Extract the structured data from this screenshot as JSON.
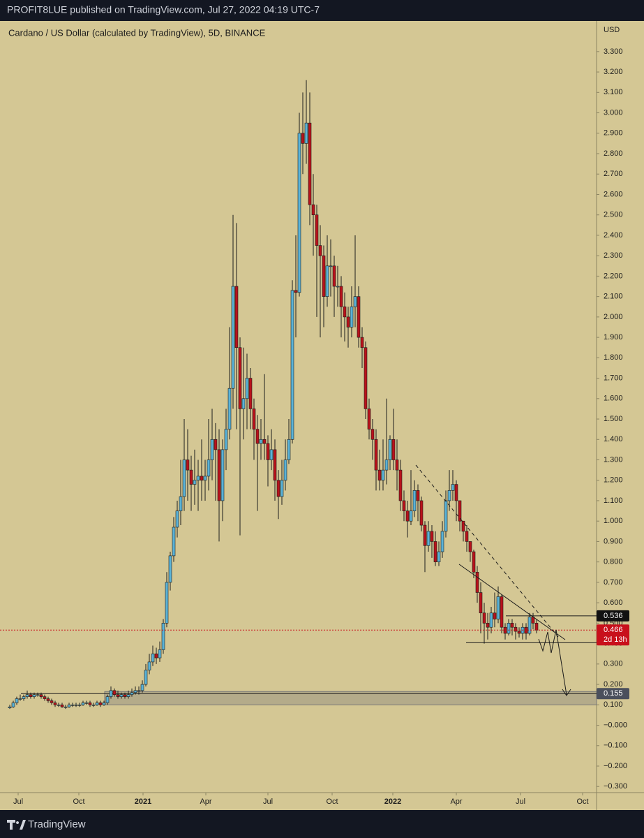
{
  "header": "PROFIT8LUE published on TradingView.com, Jul 27, 2022 04:19 UTC-7",
  "footer": "TradingView",
  "chart_data": {
    "type": "candlestick",
    "title": "Cardano / US Dollar (calculated by TradingView), 5D, BINANCE",
    "y_unit": "USD",
    "up_color": "#5ab2d6",
    "down_color": "#b8121b",
    "open": [
      0.085,
      0.09,
      0.11,
      0.13,
      0.13,
      0.14,
      0.15,
      0.14,
      0.15,
      0.15,
      0.14,
      0.13,
      0.12,
      0.11,
      0.1,
      0.1,
      0.09,
      0.09,
      0.1,
      0.1,
      0.1,
      0.1,
      0.11,
      0.11,
      0.1,
      0.1,
      0.11,
      0.1,
      0.11,
      0.14,
      0.17,
      0.15,
      0.14,
      0.15,
      0.14,
      0.15,
      0.16,
      0.17,
      0.17,
      0.2,
      0.27,
      0.31,
      0.35,
      0.33,
      0.37,
      0.5,
      0.7,
      0.83,
      0.97,
      1.05,
      1.12,
      1.3,
      1.25,
      1.18,
      1.2,
      1.22,
      1.2,
      1.22,
      1.3,
      1.4,
      1.35,
      1.1,
      1.35,
      1.45,
      1.65,
      2.15,
      1.85,
      1.55,
      1.6,
      1.7,
      1.55,
      1.45,
      1.38,
      1.4,
      1.38,
      1.3,
      1.35,
      1.2,
      1.12,
      1.2,
      1.3,
      1.4,
      2.13,
      2.12,
      2.9,
      2.85,
      2.95,
      2.55,
      2.5,
      2.35,
      2.3,
      2.1,
      2.25,
      2.25,
      2.15,
      2.15,
      2.05,
      2.0,
      1.95,
      2.05,
      2.1,
      1.9,
      1.85,
      1.55,
      1.45,
      1.4,
      1.25,
      1.2,
      1.25,
      1.3,
      1.4,
      1.3,
      1.25,
      1.1,
      1.05,
      1.0,
      1.05,
      1.15,
      1.1,
      0.98,
      0.88,
      0.95,
      0.9,
      0.8,
      0.85,
      0.95,
      1.1,
      1.15,
      1.18,
      1.1,
      1.0,
      0.95,
      0.9,
      0.85,
      0.75,
      0.65,
      0.55,
      0.5,
      0.48,
      0.55,
      0.52,
      0.63,
      0.48,
      0.45,
      0.5,
      0.48,
      0.46,
      0.45,
      0.48,
      0.45,
      0.53,
      0.5
    ],
    "high": [
      0.1,
      0.12,
      0.14,
      0.15,
      0.15,
      0.17,
      0.16,
      0.16,
      0.16,
      0.16,
      0.15,
      0.14,
      0.13,
      0.12,
      0.11,
      0.11,
      0.1,
      0.11,
      0.11,
      0.11,
      0.11,
      0.12,
      0.12,
      0.12,
      0.11,
      0.12,
      0.12,
      0.12,
      0.15,
      0.19,
      0.18,
      0.17,
      0.16,
      0.16,
      0.17,
      0.18,
      0.19,
      0.19,
      0.22,
      0.3,
      0.35,
      0.39,
      0.38,
      0.41,
      0.52,
      0.75,
      0.85,
      1.02,
      1.1,
      1.3,
      1.5,
      1.45,
      1.32,
      1.35,
      1.3,
      1.4,
      1.3,
      1.5,
      1.55,
      1.48,
      1.45,
      1.4,
      1.55,
      1.95,
      2.5,
      2.46,
      1.9,
      1.85,
      1.82,
      1.75,
      1.6,
      1.52,
      1.5,
      1.72,
      1.42,
      1.45,
      1.4,
      1.25,
      1.3,
      1.4,
      1.5,
      2.18,
      2.4,
      3.0,
      3.1,
      3.16,
      3.1,
      2.7,
      2.55,
      2.45,
      2.35,
      2.4,
      2.38,
      2.3,
      2.25,
      2.2,
      2.12,
      2.05,
      2.15,
      2.4,
      2.15,
      1.95,
      1.88,
      1.6,
      1.5,
      1.45,
      1.35,
      1.4,
      1.6,
      1.42,
      1.55,
      1.4,
      1.3,
      1.15,
      1.1,
      1.25,
      1.2,
      1.18,
      1.12,
      1.0,
      1.0,
      0.98,
      0.95,
      0.9,
      1.0,
      1.15,
      1.25,
      1.25,
      1.2,
      1.1,
      1.0,
      0.98,
      0.9,
      0.86,
      0.78,
      0.7,
      0.6,
      0.55,
      0.58,
      0.65,
      0.68,
      0.64,
      0.5,
      0.52,
      0.52,
      0.5,
      0.48,
      0.5,
      0.5,
      0.55,
      0.55,
      0.52
    ],
    "low": [
      0.08,
      0.085,
      0.1,
      0.12,
      0.12,
      0.13,
      0.13,
      0.13,
      0.14,
      0.13,
      0.12,
      0.11,
      0.1,
      0.09,
      0.09,
      0.085,
      0.08,
      0.085,
      0.09,
      0.09,
      0.09,
      0.095,
      0.1,
      0.09,
      0.09,
      0.095,
      0.09,
      0.095,
      0.1,
      0.13,
      0.14,
      0.13,
      0.13,
      0.13,
      0.13,
      0.14,
      0.15,
      0.15,
      0.16,
      0.19,
      0.25,
      0.29,
      0.3,
      0.31,
      0.35,
      0.48,
      0.66,
      0.8,
      0.92,
      0.98,
      1.05,
      1.1,
      1.05,
      1.08,
      1.05,
      1.1,
      1.1,
      1.15,
      1.2,
      1.1,
      0.9,
      1.0,
      1.25,
      1.4,
      1.55,
      1.45,
      0.93,
      1.4,
      1.45,
      1.45,
      1.3,
      1.05,
      1.3,
      1.3,
      1.17,
      1.25,
      1.1,
      1.01,
      1.08,
      1.15,
      1.28,
      1.38,
      1.9,
      2.1,
      2.7,
      2.75,
      2.45,
      2.3,
      2.0,
      1.9,
      1.95,
      2.05,
      2.1,
      2.0,
      2.05,
      1.9,
      1.88,
      1.85,
      1.9,
      1.95,
      1.85,
      1.75,
      1.5,
      1.4,
      1.3,
      1.15,
      1.15,
      1.15,
      1.18,
      1.25,
      1.25,
      1.15,
      1.05,
      1.0,
      0.92,
      0.98,
      1.02,
      1.0,
      0.95,
      0.75,
      0.85,
      0.82,
      0.78,
      0.78,
      0.82,
      0.92,
      1.05,
      1.1,
      1.0,
      0.95,
      0.9,
      0.85,
      0.8,
      0.72,
      0.6,
      0.45,
      0.4,
      0.42,
      0.45,
      0.48,
      0.5,
      0.45,
      0.42,
      0.44,
      0.44,
      0.42,
      0.43,
      0.42,
      0.42,
      0.44,
      0.47,
      0.45
    ],
    "close": [
      0.09,
      0.11,
      0.13,
      0.13,
      0.14,
      0.15,
      0.14,
      0.15,
      0.15,
      0.14,
      0.13,
      0.12,
      0.11,
      0.1,
      0.1,
      0.09,
      0.09,
      0.1,
      0.1,
      0.1,
      0.1,
      0.11,
      0.11,
      0.1,
      0.1,
      0.11,
      0.1,
      0.11,
      0.14,
      0.17,
      0.15,
      0.14,
      0.15,
      0.14,
      0.15,
      0.16,
      0.17,
      0.17,
      0.2,
      0.27,
      0.31,
      0.35,
      0.33,
      0.37,
      0.5,
      0.7,
      0.83,
      0.97,
      1.05,
      1.12,
      1.3,
      1.25,
      1.18,
      1.2,
      1.22,
      1.2,
      1.22,
      1.3,
      1.4,
      1.35,
      1.1,
      1.35,
      1.45,
      1.65,
      2.15,
      1.85,
      1.55,
      1.6,
      1.7,
      1.55,
      1.45,
      1.38,
      1.4,
      1.38,
      1.3,
      1.35,
      1.2,
      1.12,
      1.2,
      1.3,
      1.4,
      2.13,
      2.12,
      2.9,
      2.85,
      2.95,
      2.55,
      2.5,
      2.35,
      2.3,
      2.1,
      2.25,
      2.25,
      2.15,
      2.15,
      2.05,
      2.0,
      1.95,
      2.05,
      2.1,
      1.9,
      1.85,
      1.55,
      1.45,
      1.4,
      1.25,
      1.2,
      1.25,
      1.3,
      1.4,
      1.3,
      1.25,
      1.1,
      1.05,
      1.0,
      1.05,
      1.15,
      1.1,
      0.98,
      0.88,
      0.95,
      0.9,
      0.8,
      0.85,
      0.95,
      1.1,
      1.15,
      1.18,
      1.1,
      1.0,
      0.95,
      0.9,
      0.85,
      0.75,
      0.65,
      0.55,
      0.5,
      0.48,
      0.55,
      0.52,
      0.63,
      0.48,
      0.45,
      0.5,
      0.48,
      0.46,
      0.45,
      0.48,
      0.45,
      0.53,
      0.5,
      0.466
    ],
    "xlim": [
      -2.8,
      168.2
    ],
    "xticks": [
      {
        "value": 2.4,
        "label": "Jul"
      },
      {
        "value": 19.8,
        "label": "Oct"
      },
      {
        "value": 38.2,
        "label": "2021"
      },
      {
        "value": 56.2,
        "label": "Apr"
      },
      {
        "value": 74,
        "label": "Jul"
      },
      {
        "value": 92.4,
        "label": "Oct"
      },
      {
        "value": 109.8,
        "label": "2022"
      },
      {
        "value": 128,
        "label": "Apr"
      },
      {
        "value": 146.4,
        "label": "Jul"
      },
      {
        "value": 164.2,
        "label": "Oct"
      }
    ],
    "ylim": [
      -0.33,
      3.45
    ],
    "yticks": [
      {
        "value": 3.3,
        "label": "3.300"
      },
      {
        "value": 3.2,
        "label": "3.200"
      },
      {
        "value": 3.1,
        "label": "3.100"
      },
      {
        "value": 3.0,
        "label": "3.000"
      },
      {
        "value": 2.9,
        "label": "2.900"
      },
      {
        "value": 2.8,
        "label": "2.800"
      },
      {
        "value": 2.7,
        "label": "2.700"
      },
      {
        "value": 2.6,
        "label": "2.600"
      },
      {
        "value": 2.5,
        "label": "2.500"
      },
      {
        "value": 2.4,
        "label": "2.400"
      },
      {
        "value": 2.3,
        "label": "2.300"
      },
      {
        "value": 2.2,
        "label": "2.200"
      },
      {
        "value": 2.1,
        "label": "2.100"
      },
      {
        "value": 2.0,
        "label": "2.000"
      },
      {
        "value": 1.9,
        "label": "1.900"
      },
      {
        "value": 1.8,
        "label": "1.800"
      },
      {
        "value": 1.7,
        "label": "1.700"
      },
      {
        "value": 1.6,
        "label": "1.600"
      },
      {
        "value": 1.5,
        "label": "1.500"
      },
      {
        "value": 1.4,
        "label": "1.400"
      },
      {
        "value": 1.3,
        "label": "1.300"
      },
      {
        "value": 1.2,
        "label": "1.200"
      },
      {
        "value": 1.1,
        "label": "1.100"
      },
      {
        "value": 1.0,
        "label": "1.000"
      },
      {
        "value": 0.9,
        "label": "0.900"
      },
      {
        "value": 0.8,
        "label": "0.800"
      },
      {
        "value": 0.7,
        "label": "0.700"
      },
      {
        "value": 0.6,
        "label": "0.600"
      },
      {
        "value": 0.5,
        "label": "0.500"
      },
      {
        "value": 0.4,
        "label": "0.400"
      },
      {
        "value": 0.3,
        "label": "0.300"
      },
      {
        "value": 0.2,
        "label": "0.200"
      },
      {
        "value": 0.1,
        "label": "0.100"
      },
      {
        "value": 0,
        "label": "−0.000"
      },
      {
        "value": -0.1,
        "label": "−0.100"
      },
      {
        "value": -0.2,
        "label": "−0.200"
      },
      {
        "value": -0.3,
        "label": "−0.300"
      }
    ],
    "zone": {
      "low": 0.1,
      "high": 0.165
    },
    "levels": [
      0.155,
      0.404,
      0.536
    ],
    "price_tags": [
      {
        "value": 0.536,
        "label": "0.536",
        "color": "#111111"
      },
      {
        "value": 0.466,
        "label": "0.466",
        "color": "#c8101b"
      },
      {
        "value": 0.155,
        "label": "0.155",
        "color": "#4a4f5c"
      }
    ],
    "countdown": "2d 13h"
  }
}
